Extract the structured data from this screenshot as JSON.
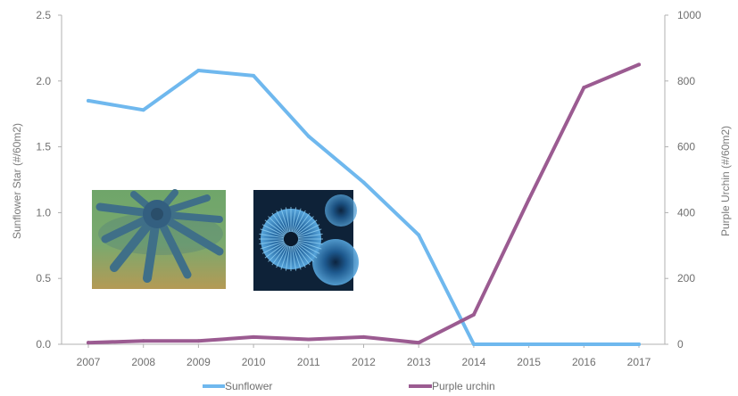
{
  "chart_data": {
    "type": "line",
    "categories": [
      "2007",
      "2008",
      "2009",
      "2010",
      "2011",
      "2012",
      "2013",
      "2014",
      "2015",
      "2016",
      "2017"
    ],
    "y_left": {
      "label": "Sunflower Star (#/60m2)",
      "ylim": [
        0,
        2.5
      ],
      "ticks": [
        "0.0",
        "0.5",
        "1.0",
        "1.5",
        "2.0",
        "2.5"
      ]
    },
    "y_right": {
      "label": "Purple Urchin (#/60m2)",
      "ylim": [
        0,
        1000
      ],
      "ticks": [
        "0",
        "200",
        "400",
        "600",
        "800",
        "1000"
      ]
    },
    "series": [
      {
        "name": "Sunflower",
        "axis": "left",
        "color": "#6fb8ee",
        "values": [
          1.85,
          1.78,
          2.08,
          2.04,
          1.58,
          1.23,
          0.83,
          0.0,
          0.0,
          0.0,
          0.0
        ]
      },
      {
        "name": "Purple urchin",
        "axis": "right",
        "color": "#9b5b91",
        "values": [
          5,
          10,
          10,
          22,
          15,
          22,
          5,
          90,
          440,
          780,
          850
        ]
      }
    ],
    "legend": "bottom",
    "grid": false
  },
  "photos": [
    {
      "name": "sunflower-star-photo"
    },
    {
      "name": "purple-urchin-photo"
    }
  ]
}
